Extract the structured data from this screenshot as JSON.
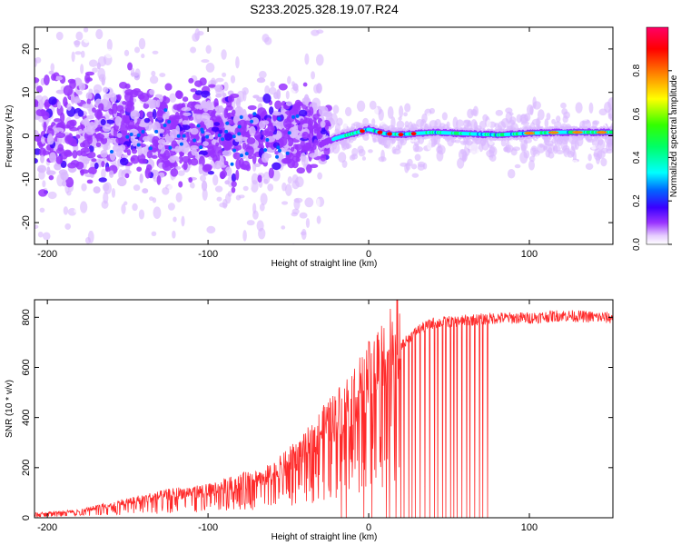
{
  "chart_data": [
    {
      "type": "heatmap",
      "title": "S233.2025.328.19.07.R24",
      "xlabel": "Height of straight line (km)",
      "ylabel": "Frequency (Hz)",
      "xlim": [
        -208,
        152
      ],
      "ylim": [
        -25,
        25
      ],
      "xticks": [
        -200,
        -100,
        0,
        100
      ],
      "xtick_labels": [
        "-200",
        "-100",
        "0",
        "100"
      ],
      "yticks": [
        -20,
        -10,
        0,
        10,
        20
      ],
      "ytick_labels": [
        "-20",
        "-10",
        "0",
        "10",
        "20"
      ],
      "colorbar": {
        "label": "Normalized spectral amplitude",
        "range": [
          0,
          1
        ],
        "ticks": [
          0.0,
          0.2,
          0.4,
          0.6,
          0.8
        ],
        "tick_labels": [
          "0.0",
          "0.2",
          "0.4",
          "0.6",
          "0.8"
        ],
        "colormap": [
          "#ffffff",
          "#d9b8ff",
          "#9933ff",
          "#3a00ff",
          "#0066ff",
          "#00ffff",
          "#00ff66",
          "#33ff00",
          "#ffff00",
          "#ff8800",
          "#ff0000",
          "#ff0066"
        ]
      },
      "ridge": {
        "description_values": "dominant frequency (Hz) vs height (km)",
        "x": [
          -30,
          -20,
          -10,
          0,
          10,
          20,
          40,
          60,
          80,
          100,
          120,
          150
        ],
        "y": [
          -2,
          -0.5,
          0.5,
          1.5,
          0.5,
          0.3,
          0.8,
          0.5,
          0.2,
          0.6,
          0.8,
          0.8
        ]
      },
      "scatter_region": {
        "x_range": [
          -208,
          -25
        ],
        "frequency_spread_hz": 25,
        "spread_core_hz": 8
      }
    },
    {
      "type": "line",
      "title": "",
      "xlabel": "Height of straight line (km)",
      "ylabel": "SNR (10 * v/v)",
      "xlim": [
        -208,
        152
      ],
      "ylim": [
        0,
        870
      ],
      "xticks": [
        -200,
        -100,
        0,
        100
      ],
      "xtick_labels": [
        "-200",
        "-100",
        "0",
        "100"
      ],
      "yticks": [
        0,
        200,
        400,
        600,
        800
      ],
      "ytick_labels": [
        "0",
        "200",
        "400",
        "600",
        "800"
      ],
      "series": [
        {
          "name": "SNR",
          "color": "#ff2a2a",
          "trend_x": [
            -208,
            -180,
            -150,
            -120,
            -100,
            -80,
            -60,
            -40,
            -30,
            -20,
            -10,
            0,
            10,
            20,
            30,
            40,
            60,
            80,
            100,
            120,
            152
          ],
          "trend_y": [
            15,
            25,
            60,
            90,
            100,
            130,
            160,
            250,
            320,
            380,
            450,
            520,
            610,
            680,
            740,
            770,
            780,
            790,
            790,
            800,
            790
          ],
          "dropout_x": [
            -17,
            -14,
            -3,
            2,
            11,
            13,
            17,
            20,
            22,
            25,
            27,
            29,
            32,
            35,
            38,
            41,
            43,
            46,
            48,
            51,
            53,
            55,
            58,
            61,
            63,
            66,
            69,
            71,
            74
          ]
        }
      ]
    }
  ],
  "colors": {
    "accent": "#ff2a2a",
    "axis": "#000000"
  }
}
